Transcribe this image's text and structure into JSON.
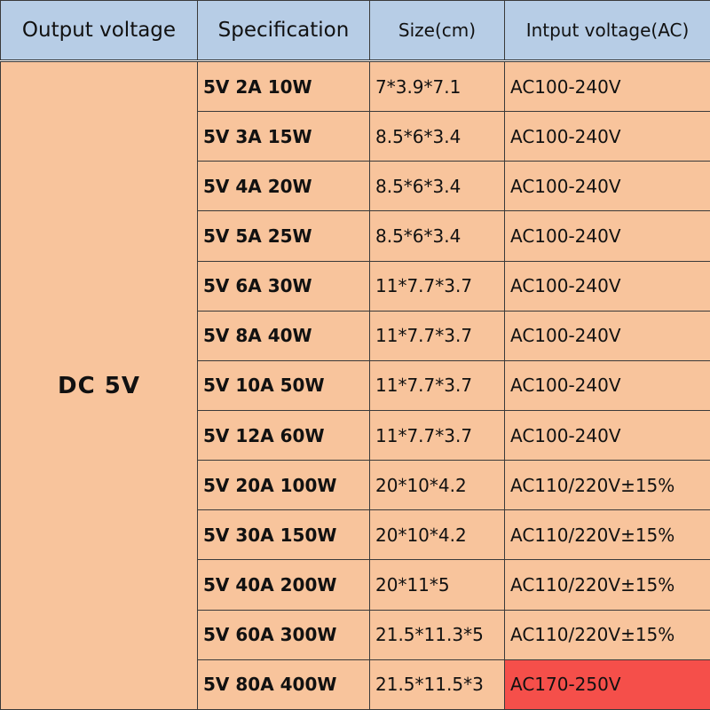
{
  "colors": {
    "header_bg": "#b7cde6",
    "cell_bg": "#f8c49c",
    "highlight_bg": "#f54f4a",
    "border": "#3a3a3a"
  },
  "headers": {
    "output_voltage": "Output voltage",
    "specification": "Specification",
    "size": "Size(cm)",
    "input_voltage": "Intput voltage(AC)"
  },
  "output_voltage_value": "DC 5V",
  "rows": [
    {
      "spec": "5V 2A 10W",
      "size": "7*3.9*7.1",
      "input": "AC100-240V"
    },
    {
      "spec": "5V 3A 15W",
      "size": "8.5*6*3.4",
      "input": "AC100-240V"
    },
    {
      "spec": "5V 4A 20W",
      "size": "8.5*6*3.4",
      "input": "AC100-240V"
    },
    {
      "spec": "5V 5A 25W",
      "size": "8.5*6*3.4",
      "input": "AC100-240V"
    },
    {
      "spec": "5V 6A 30W",
      "size": "11*7.7*3.7",
      "input": "AC100-240V"
    },
    {
      "spec": "5V 8A 40W",
      "size": "11*7.7*3.7",
      "input": "AC100-240V"
    },
    {
      "spec": "5V 10A 50W",
      "size": "11*7.7*3.7",
      "input": "AC100-240V"
    },
    {
      "spec": "5V 12A 60W",
      "size": "11*7.7*3.7",
      "input": "AC100-240V"
    },
    {
      "spec": "5V 20A 100W",
      "size": "20*10*4.2",
      "input": "AC110/220V±15%"
    },
    {
      "spec": "5V 30A 150W",
      "size": "20*10*4.2",
      "input": "AC110/220V±15%"
    },
    {
      "spec": "5V 40A 200W",
      "size": "20*11*5",
      "input": "AC110/220V±15%"
    },
    {
      "spec": "5V 60A 300W",
      "size": "21.5*11.3*5",
      "input": "AC110/220V±15%"
    },
    {
      "spec": "5V 80A 400W",
      "size": "21.5*11.5*3",
      "input": "AC170-250V",
      "highlight": true
    }
  ]
}
